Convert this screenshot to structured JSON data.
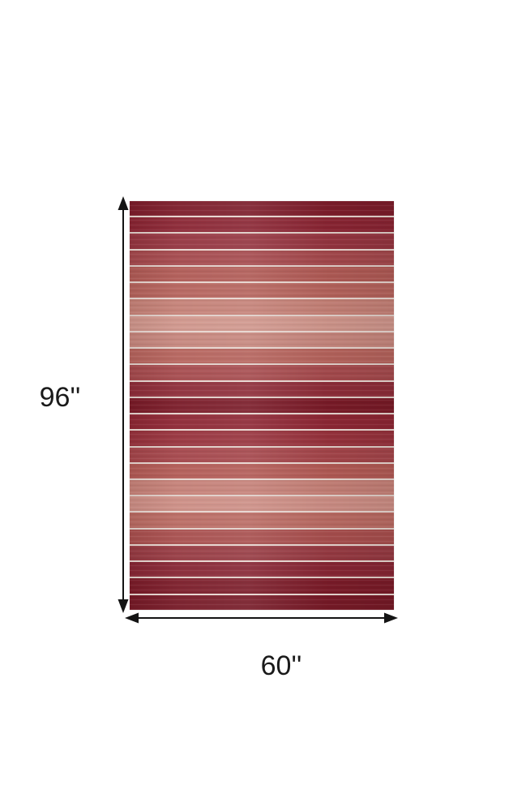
{
  "figure": {
    "type": "product-dimension-diagram",
    "subject": "Red ombre striped flatweave area rug"
  },
  "dimensions": {
    "height_label": "96''",
    "width_label": "60''",
    "arrow_color": "#141414",
    "label_color": "#1a1a1a"
  },
  "rug": {
    "pinstripe_color": "#e6d4ce",
    "stripes": [
      "#7d1d2b",
      "#8a2533",
      "#953540",
      "#a4484c",
      "#b05a55",
      "#b5635c",
      "#c48076",
      "#cf958b",
      "#c5857c",
      "#b5635c",
      "#a54a4d",
      "#8e2d39",
      "#7a1b28",
      "#8e2734",
      "#97323c",
      "#a4454a",
      "#b25a55",
      "#c47f76",
      "#cc8d84",
      "#b96a62",
      "#a84f4e",
      "#963a42",
      "#872634",
      "#7b1c29",
      "#771a27"
    ]
  }
}
